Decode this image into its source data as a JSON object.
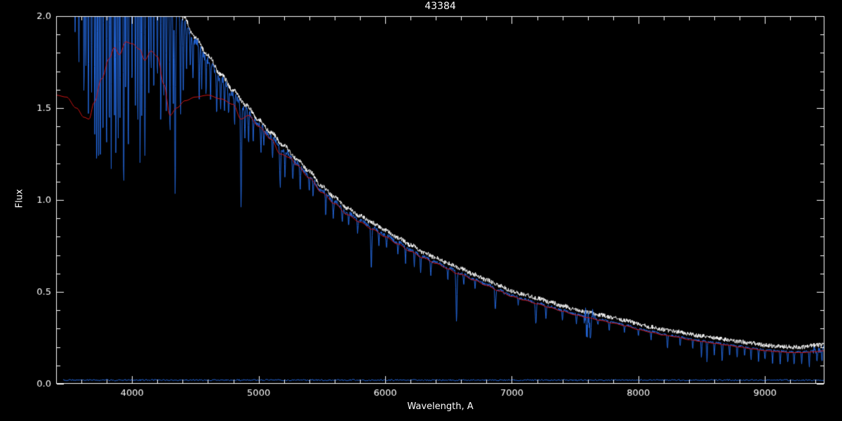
{
  "page": {
    "background": "#000000"
  },
  "chart_data": {
    "type": "line",
    "title": "43384",
    "xlabel": "Wavelength, A",
    "ylabel": "Flux",
    "xlim": [
      3400,
      9470
    ],
    "ylim": [
      0.0,
      2.0
    ],
    "x_ticks": [
      4000,
      5000,
      6000,
      7000,
      8000,
      9000
    ],
    "x_tick_labels": [
      "4000",
      "5000",
      "6000",
      "7000",
      "8000",
      "9000"
    ],
    "x_minor_step": 200,
    "y_ticks": [
      0.0,
      0.5,
      1.0,
      1.5,
      2.0
    ],
    "y_tick_labels": [
      "0.0",
      "0.5",
      "1.0",
      "1.5",
      "2.0"
    ],
    "y_minor_step": 0.1,
    "grid": false,
    "colors": {
      "background": "#000000",
      "axis": "#ffffff",
      "observed": "#2468dd",
      "overlay": "#ffffff",
      "model": "#cc1414"
    },
    "series": [
      {
        "name": "observed-spectrum",
        "role": "observed",
        "x_start": 3470,
        "continuum": [
          [
            3400,
            2.3
          ],
          [
            3700,
            2.35
          ],
          [
            4000,
            2.4
          ],
          [
            4200,
            2.25
          ],
          [
            4300,
            2.12
          ],
          [
            4400,
            1.98
          ],
          [
            4500,
            1.86
          ],
          [
            4600,
            1.76
          ],
          [
            4700,
            1.66
          ],
          [
            4800,
            1.57
          ],
          [
            4900,
            1.49
          ],
          [
            5000,
            1.41
          ],
          [
            5100,
            1.34
          ],
          [
            5200,
            1.27
          ],
          [
            5300,
            1.2
          ],
          [
            5400,
            1.13
          ],
          [
            5500,
            1.05
          ],
          [
            5600,
            0.99
          ],
          [
            5700,
            0.93
          ],
          [
            5800,
            0.89
          ],
          [
            5900,
            0.85
          ],
          [
            6000,
            0.81
          ],
          [
            6100,
            0.77
          ],
          [
            6200,
            0.73
          ],
          [
            6300,
            0.69
          ],
          [
            6400,
            0.66
          ],
          [
            6500,
            0.63
          ],
          [
            6600,
            0.6
          ],
          [
            6700,
            0.57
          ],
          [
            6800,
            0.54
          ],
          [
            6900,
            0.51
          ],
          [
            7000,
            0.48
          ],
          [
            7100,
            0.46
          ],
          [
            7200,
            0.44
          ],
          [
            7300,
            0.42
          ],
          [
            7400,
            0.4
          ],
          [
            7500,
            0.38
          ],
          [
            7600,
            0.365
          ],
          [
            7700,
            0.35
          ],
          [
            7800,
            0.335
          ],
          [
            7900,
            0.32
          ],
          [
            8000,
            0.3
          ],
          [
            8100,
            0.285
          ],
          [
            8200,
            0.27
          ],
          [
            8300,
            0.26
          ],
          [
            8400,
            0.245
          ],
          [
            8500,
            0.235
          ],
          [
            8600,
            0.225
          ],
          [
            8700,
            0.215
          ],
          [
            8800,
            0.205
          ],
          [
            8900,
            0.195
          ],
          [
            9000,
            0.185
          ],
          [
            9100,
            0.18
          ],
          [
            9200,
            0.175
          ],
          [
            9300,
            0.175
          ],
          [
            9400,
            0.185
          ],
          [
            9470,
            0.19
          ]
        ],
        "absorption_lines": [
          [
            3550,
            1.9,
            3
          ],
          [
            3580,
            1.75,
            3
          ],
          [
            3620,
            1.55,
            3
          ],
          [
            3635,
            1.7,
            3
          ],
          [
            3655,
            1.45,
            3
          ],
          [
            3680,
            1.6,
            3
          ],
          [
            3705,
            1.35,
            3
          ],
          [
            3720,
            1.1,
            3
          ],
          [
            3735,
            1.25,
            3
          ],
          [
            3750,
            1.2,
            3
          ],
          [
            3770,
            1.3,
            3
          ],
          [
            3798,
            1.25,
            3
          ],
          [
            3820,
            1.35,
            3
          ],
          [
            3835,
            1.15,
            3
          ],
          [
            3860,
            1.45,
            3
          ],
          [
            3872,
            1.2,
            3
          ],
          [
            3890,
            1.3,
            3
          ],
          [
            3905,
            1.45,
            3
          ],
          [
            3934,
            1.05,
            4
          ],
          [
            3950,
            1.55,
            3
          ],
          [
            3970,
            1.25,
            4
          ],
          [
            4000,
            1.6,
            3
          ],
          [
            4026,
            1.5,
            3
          ],
          [
            4045,
            1.4,
            3
          ],
          [
            4063,
            1.17,
            3
          ],
          [
            4077,
            1.45,
            3
          ],
          [
            4101,
            1.25,
            4
          ],
          [
            4132,
            1.6,
            3
          ],
          [
            4150,
            1.7,
            3
          ],
          [
            4172,
            1.55,
            3
          ],
          [
            4200,
            1.65,
            3
          ],
          [
            4227,
            1.4,
            3
          ],
          [
            4250,
            1.55,
            3
          ],
          [
            4271,
            1.45,
            3
          ],
          [
            4300,
            1.35,
            4
          ],
          [
            4325,
            1.5,
            3
          ],
          [
            4340,
            1.02,
            4
          ],
          [
            4383,
            1.45,
            3
          ],
          [
            4405,
            1.55,
            3
          ],
          [
            4430,
            1.7,
            3
          ],
          [
            4460,
            1.72,
            3
          ],
          [
            4481,
            1.65,
            3
          ],
          [
            4530,
            1.55,
            3
          ],
          [
            4550,
            1.62,
            3
          ],
          [
            4584,
            1.58,
            3
          ],
          [
            4620,
            1.55,
            3
          ],
          [
            4668,
            1.47,
            3
          ],
          [
            4700,
            1.5,
            3
          ],
          [
            4730,
            1.48,
            3
          ],
          [
            4762,
            1.45,
            3
          ],
          [
            4810,
            1.42,
            3
          ],
          [
            4861,
            0.97,
            4
          ],
          [
            4891,
            1.35,
            3
          ],
          [
            4920,
            1.3,
            3
          ],
          [
            4957,
            1.32,
            3
          ],
          [
            5018,
            1.25,
            3
          ],
          [
            5041,
            1.3,
            3
          ],
          [
            5110,
            1.22,
            3
          ],
          [
            5170,
            1.07,
            4
          ],
          [
            5208,
            1.12,
            3
          ],
          [
            5270,
            1.1,
            3
          ],
          [
            5328,
            1.05,
            3
          ],
          [
            5400,
            1.04,
            3
          ],
          [
            5430,
            1.02,
            3
          ],
          [
            5530,
            0.92,
            3
          ],
          [
            5590,
            0.9,
            3
          ],
          [
            5660,
            0.88,
            3
          ],
          [
            5710,
            0.86,
            3
          ],
          [
            5782,
            0.82,
            3
          ],
          [
            5890,
            0.62,
            4
          ],
          [
            5950,
            0.76,
            3
          ],
          [
            6010,
            0.73,
            3
          ],
          [
            6100,
            0.7,
            3
          ],
          [
            6160,
            0.66,
            3
          ],
          [
            6230,
            0.64,
            3
          ],
          [
            6280,
            0.6,
            3
          ],
          [
            6360,
            0.58,
            3
          ],
          [
            6495,
            0.56,
            3
          ],
          [
            6563,
            0.34,
            4
          ],
          [
            6620,
            0.54,
            3
          ],
          [
            6710,
            0.52,
            3
          ],
          [
            6870,
            0.4,
            4
          ],
          [
            6940,
            0.48,
            3
          ],
          [
            7050,
            0.43,
            3
          ],
          [
            7190,
            0.33,
            4
          ],
          [
            7270,
            0.35,
            3
          ],
          [
            7400,
            0.34,
            3
          ],
          [
            7510,
            0.33,
            3
          ],
          [
            7594,
            0.27,
            5
          ],
          [
            7620,
            0.29,
            4
          ],
          [
            7680,
            0.32,
            3
          ],
          [
            7770,
            0.29,
            3
          ],
          [
            7890,
            0.28,
            3
          ],
          [
            8000,
            0.26,
            3
          ],
          [
            8100,
            0.24,
            3
          ],
          [
            8230,
            0.19,
            3
          ],
          [
            8330,
            0.21,
            3
          ],
          [
            8430,
            0.19,
            3
          ],
          [
            8498,
            0.14,
            3
          ],
          [
            8542,
            0.12,
            3
          ],
          [
            8600,
            0.16,
            3
          ],
          [
            8662,
            0.12,
            3
          ],
          [
            8720,
            0.15,
            3
          ],
          [
            8780,
            0.14,
            3
          ],
          [
            8840,
            0.15,
            3
          ],
          [
            8890,
            0.13,
            3
          ],
          [
            8950,
            0.12,
            3
          ],
          [
            9000,
            0.13,
            3
          ],
          [
            9060,
            0.11,
            3
          ],
          [
            9120,
            0.1,
            3
          ],
          [
            9180,
            0.12,
            3
          ],
          [
            9230,
            0.1,
            3
          ],
          [
            9290,
            0.11,
            3
          ],
          [
            9350,
            0.09,
            3
          ],
          [
            9410,
            0.12,
            3
          ],
          [
            9450,
            0.11,
            3
          ]
        ],
        "noise_base": 0.005,
        "noise_scale": 0.016,
        "noisy_bands": [
          [
            7570,
            7660,
            0.05
          ],
          [
            9380,
            9470,
            0.015
          ]
        ]
      },
      {
        "name": "overlay-spectrum",
        "role": "overlay",
        "based_on": "observed",
        "x_start": 3470,
        "offset": 0.025,
        "noise": 0.012
      },
      {
        "name": "model-spectrum",
        "role": "model",
        "points": [
          [
            3400,
            1.57
          ],
          [
            3480,
            1.56
          ],
          [
            3560,
            1.5
          ],
          [
            3620,
            1.45
          ],
          [
            3660,
            1.44
          ],
          [
            3700,
            1.53
          ],
          [
            3760,
            1.66
          ],
          [
            3820,
            1.77
          ],
          [
            3860,
            1.83
          ],
          [
            3900,
            1.79
          ],
          [
            3950,
            1.86
          ],
          [
            4000,
            1.85
          ],
          [
            4060,
            1.82
          ],
          [
            4100,
            1.76
          ],
          [
            4150,
            1.81
          ],
          [
            4200,
            1.78
          ],
          [
            4250,
            1.63
          ],
          [
            4300,
            1.46
          ],
          [
            4350,
            1.5
          ],
          [
            4420,
            1.54
          ],
          [
            4500,
            1.56
          ],
          [
            4600,
            1.57
          ],
          [
            4700,
            1.55
          ],
          [
            4800,
            1.52
          ],
          [
            4860,
            1.44
          ],
          [
            4920,
            1.46
          ],
          [
            5000,
            1.4
          ],
          [
            5100,
            1.33
          ],
          [
            5170,
            1.25
          ],
          [
            5250,
            1.23
          ],
          [
            5300,
            1.19
          ],
          [
            5400,
            1.12
          ],
          [
            5500,
            1.04
          ],
          [
            5600,
            0.98
          ],
          [
            5700,
            0.92
          ],
          [
            5800,
            0.88
          ],
          [
            5900,
            0.84
          ],
          [
            6000,
            0.8
          ],
          [
            6100,
            0.76
          ],
          [
            6200,
            0.72
          ],
          [
            6300,
            0.685
          ],
          [
            6400,
            0.655
          ],
          [
            6500,
            0.625
          ],
          [
            6563,
            0.6
          ],
          [
            6600,
            0.595
          ],
          [
            6700,
            0.565
          ],
          [
            6800,
            0.535
          ],
          [
            6900,
            0.505
          ],
          [
            7000,
            0.475
          ],
          [
            7100,
            0.455
          ],
          [
            7200,
            0.435
          ],
          [
            7300,
            0.415
          ],
          [
            7400,
            0.395
          ],
          [
            7500,
            0.375
          ],
          [
            7600,
            0.36
          ],
          [
            7700,
            0.345
          ],
          [
            7800,
            0.33
          ],
          [
            7900,
            0.315
          ],
          [
            8000,
            0.295
          ],
          [
            8100,
            0.28
          ],
          [
            8200,
            0.265
          ],
          [
            8300,
            0.255
          ],
          [
            8400,
            0.24
          ],
          [
            8500,
            0.23
          ],
          [
            8600,
            0.22
          ],
          [
            8700,
            0.21
          ],
          [
            8800,
            0.2
          ],
          [
            8900,
            0.19
          ],
          [
            9000,
            0.18
          ],
          [
            9100,
            0.175
          ],
          [
            9200,
            0.17
          ],
          [
            9300,
            0.17
          ],
          [
            9400,
            0.175
          ],
          [
            9470,
            0.18
          ]
        ]
      },
      {
        "name": "error-spectrum",
        "role": "error",
        "x_start": 3450,
        "level": 0.02
      }
    ]
  }
}
